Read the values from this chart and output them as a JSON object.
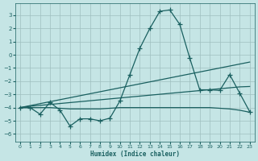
{
  "xlabel": "Humidex (Indice chaleur)",
  "xlim": [
    -0.5,
    23.5
  ],
  "ylim": [
    -6.6,
    3.9
  ],
  "yticks": [
    3,
    2,
    1,
    0,
    -1,
    -2,
    -3,
    -4,
    -5,
    -6
  ],
  "xticks": [
    0,
    1,
    2,
    3,
    4,
    5,
    6,
    7,
    8,
    9,
    10,
    11,
    12,
    13,
    14,
    15,
    16,
    17,
    18,
    19,
    20,
    21,
    22,
    23
  ],
  "bg_color": "#c5e5e5",
  "grid_color": "#9fbfbf",
  "line_color": "#1a6060",
  "line1": {
    "x": [
      0,
      1,
      2,
      3,
      4,
      5,
      6,
      7,
      8,
      9,
      10,
      11,
      12,
      13,
      14,
      15,
      16,
      17,
      18,
      19,
      20,
      21,
      22,
      23
    ],
    "y": [
      -4.0,
      -4.0,
      -4.5,
      -3.6,
      -4.2,
      -5.4,
      -4.85,
      -4.85,
      -5.0,
      -4.8,
      -3.5,
      -1.5,
      0.5,
      2.0,
      3.3,
      3.4,
      2.3,
      -0.25,
      -2.65,
      -2.65,
      -2.7,
      -1.5,
      -2.9,
      -4.3
    ]
  },
  "line2": {
    "x": [
      0,
      1,
      2,
      3,
      4,
      5,
      6,
      7,
      8,
      9,
      10,
      11,
      12,
      13,
      14,
      15,
      16,
      17,
      18,
      19,
      20,
      21,
      22,
      23
    ],
    "y": [
      -4.0,
      -3.85,
      -3.7,
      -3.55,
      -3.4,
      -3.25,
      -3.1,
      -2.95,
      -2.8,
      -2.65,
      -2.5,
      -2.35,
      -2.2,
      -2.05,
      -1.9,
      -1.75,
      -1.6,
      -1.45,
      -1.3,
      -1.15,
      -1.0,
      -0.85,
      -0.7,
      -0.55
    ]
  },
  "line3": {
    "x": [
      0,
      1,
      2,
      3,
      4,
      5,
      6,
      7,
      8,
      9,
      10,
      11,
      12,
      13,
      14,
      15,
      16,
      17,
      18,
      19,
      20,
      21,
      22,
      23
    ],
    "y": [
      -4.0,
      -3.9,
      -3.83,
      -3.76,
      -3.69,
      -3.62,
      -3.55,
      -3.48,
      -3.41,
      -3.34,
      -3.27,
      -3.2,
      -3.13,
      -3.06,
      -2.99,
      -2.92,
      -2.85,
      -2.78,
      -2.71,
      -2.64,
      -2.57,
      -2.5,
      -2.43,
      -2.4
    ]
  },
  "line4": {
    "x": [
      0,
      1,
      2,
      3,
      4,
      5,
      6,
      7,
      8,
      9,
      10,
      11,
      12,
      13,
      14,
      15,
      16,
      17,
      18,
      19,
      20,
      21,
      22,
      23
    ],
    "y": [
      -4.0,
      -4.0,
      -4.0,
      -4.0,
      -4.05,
      -4.1,
      -4.1,
      -4.1,
      -4.1,
      -4.05,
      -4.0,
      -4.0,
      -4.0,
      -4.0,
      -4.0,
      -4.0,
      -4.0,
      -4.0,
      -4.0,
      -4.0,
      -4.05,
      -4.1,
      -4.2,
      -4.35
    ]
  },
  "figsize": [
    3.2,
    2.0
  ],
  "dpi": 100
}
